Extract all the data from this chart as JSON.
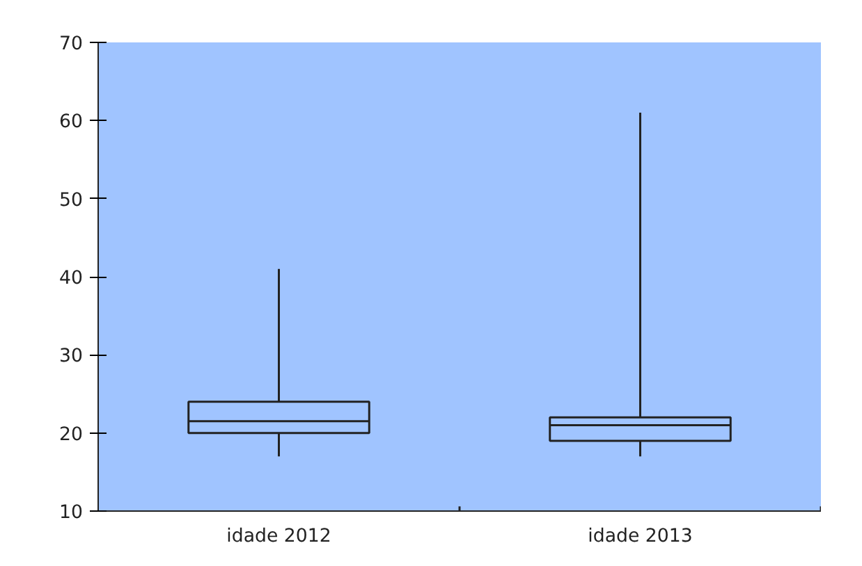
{
  "chart_data": {
    "type": "box",
    "categories": [
      "idade 2012",
      "idade 2013"
    ],
    "boxes": [
      {
        "low": 17,
        "q1": 20,
        "median": 21.5,
        "q3": 24,
        "high": 41
      },
      {
        "low": 17,
        "q1": 19,
        "median": 21,
        "q3": 22,
        "high": 61
      }
    ],
    "ylim": [
      10,
      70
    ],
    "yticks": [
      10,
      20,
      30,
      40,
      50,
      60,
      70
    ],
    "grid": false
  }
}
